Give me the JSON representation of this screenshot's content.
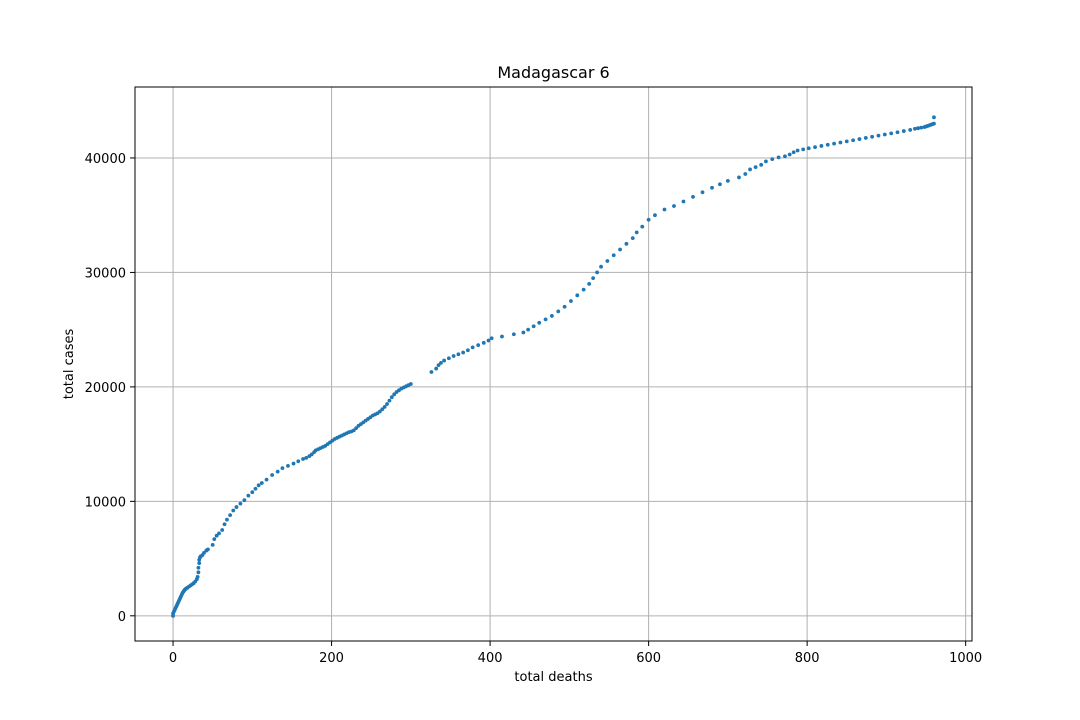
{
  "chart_data": {
    "type": "scatter",
    "title": "Madagascar 6",
    "xlabel": "total deaths",
    "ylabel": "total cases",
    "xlim": [
      -48,
      1008
    ],
    "ylim": [
      -2200,
      46200
    ],
    "xticks": [
      0,
      200,
      400,
      600,
      800,
      1000
    ],
    "yticks": [
      0,
      10000,
      20000,
      30000,
      40000
    ],
    "xtick_labels": [
      "0",
      "200",
      "400",
      "600",
      "800",
      "1000"
    ],
    "ytick_labels": [
      "0",
      "10000",
      "20000",
      "30000",
      "40000"
    ],
    "grid": true,
    "color": "#1f77b4",
    "x": [
      0,
      0,
      1,
      2,
      3,
      4,
      5,
      6,
      7,
      8,
      9,
      10,
      11,
      12,
      13,
      14,
      15,
      16,
      17,
      18,
      20,
      22,
      24,
      26,
      28,
      30,
      31,
      32,
      32,
      33,
      33,
      34,
      35,
      37,
      39,
      42,
      44,
      50,
      52,
      55,
      58,
      62,
      65,
      68,
      72,
      76,
      80,
      85,
      90,
      95,
      100,
      104,
      108,
      112,
      118,
      125,
      132,
      138,
      145,
      152,
      158,
      164,
      168,
      172,
      175,
      178,
      180,
      183,
      186,
      189,
      192,
      195,
      198,
      201,
      204,
      207,
      210,
      213,
      216,
      219,
      222,
      225,
      228,
      231,
      234,
      237,
      240,
      243,
      246,
      249,
      252,
      255,
      258,
      261,
      264,
      267,
      270,
      273,
      276,
      279,
      282,
      285,
      288,
      291,
      294,
      297,
      300,
      326,
      332,
      335,
      338,
      342,
      348,
      354,
      360,
      366,
      372,
      378,
      385,
      392,
      398,
      402,
      415,
      430,
      442,
      448,
      455,
      462,
      470,
      478,
      486,
      494,
      502,
      510,
      518,
      525,
      530,
      535,
      540,
      548,
      556,
      564,
      572,
      580,
      585,
      592,
      600,
      608,
      620,
      632,
      644,
      656,
      668,
      680,
      690,
      700,
      714,
      722,
      728,
      735,
      742,
      748,
      756,
      764,
      772,
      778,
      783,
      788,
      795,
      802,
      810,
      818,
      826,
      834,
      842,
      850,
      858,
      866,
      874,
      882,
      890,
      898,
      906,
      914,
      922,
      930,
      936,
      940,
      944,
      948,
      950,
      952,
      954,
      956,
      958,
      960,
      960
    ],
    "y": [
      0,
      200,
      350,
      500,
      650,
      800,
      950,
      1100,
      1250,
      1400,
      1550,
      1700,
      1850,
      2000,
      2100,
      2200,
      2300,
      2350,
      2400,
      2450,
      2550,
      2650,
      2750,
      2850,
      3000,
      3200,
      3400,
      3800,
      4200,
      4600,
      4900,
      5100,
      5200,
      5300,
      5500,
      5700,
      5800,
      6200,
      6700,
      7000,
      7200,
      7500,
      8000,
      8400,
      8800,
      9200,
      9500,
      9800,
      10100,
      10500,
      10800,
      11100,
      11400,
      11600,
      11900,
      12300,
      12600,
      12900,
      13100,
      13300,
      13500,
      13700,
      13800,
      13950,
      14100,
      14300,
      14450,
      14550,
      14650,
      14750,
      14850,
      15000,
      15150,
      15300,
      15450,
      15550,
      15650,
      15750,
      15850,
      15950,
      16050,
      16100,
      16200,
      16400,
      16600,
      16750,
      16900,
      17050,
      17200,
      17350,
      17500,
      17600,
      17700,
      17850,
      18050,
      18250,
      18500,
      18800,
      19100,
      19350,
      19550,
      19700,
      19850,
      19950,
      20050,
      20150,
      20250,
      21300,
      21600,
      21900,
      22100,
      22300,
      22500,
      22700,
      22850,
      23000,
      23200,
      23450,
      23650,
      23850,
      24050,
      24250,
      24400,
      24600,
      24750,
      25000,
      25300,
      25600,
      25900,
      26200,
      26600,
      27000,
      27500,
      28000,
      28500,
      29000,
      29500,
      30000,
      30500,
      31000,
      31500,
      32000,
      32500,
      33000,
      33500,
      34000,
      34600,
      35000,
      35500,
      35800,
      36200,
      36600,
      37000,
      37400,
      37700,
      38000,
      38300,
      38600,
      39000,
      39200,
      39400,
      39700,
      39900,
      40050,
      40150,
      40300,
      40500,
      40650,
      40750,
      40850,
      40950,
      41050,
      41150,
      41250,
      41350,
      41450,
      41550,
      41650,
      41750,
      41850,
      41950,
      42050,
      42150,
      42250,
      42350,
      42450,
      42550,
      42600,
      42650,
      42700,
      42750,
      42800,
      42850,
      42900,
      42950,
      43000,
      43550
    ]
  }
}
